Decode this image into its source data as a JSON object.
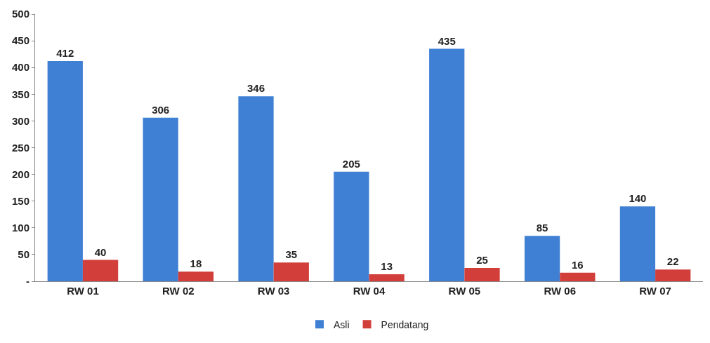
{
  "chart_data": {
    "type": "bar",
    "categories": [
      "RW 01",
      "RW 02",
      "RW 03",
      "RW 04",
      "RW 05",
      "RW 06",
      "RW 07"
    ],
    "series": [
      {
        "name": "Asli",
        "color": "#3f80d4",
        "values": [
          412,
          306,
          346,
          205,
          435,
          85,
          140
        ]
      },
      {
        "name": "Pendatang",
        "color": "#d23f3b",
        "values": [
          40,
          18,
          35,
          13,
          25,
          16,
          22
        ]
      }
    ],
    "ylim": [
      0,
      500
    ],
    "yticks": [
      {
        "value": 0,
        "label": "-"
      },
      50,
      100,
      150,
      200,
      250,
      300,
      350,
      400,
      450,
      500
    ],
    "data_labels": true,
    "legend": "bottom"
  }
}
